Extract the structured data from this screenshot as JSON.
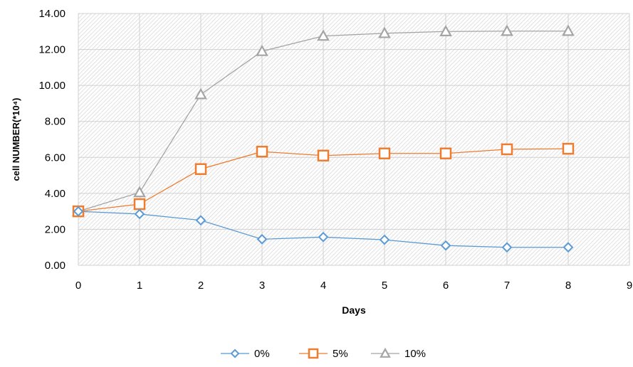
{
  "chart_data": {
    "type": "line",
    "title": "",
    "xlabel": "Days",
    "ylabel": "cell NUMBER(*10⁴)",
    "xlim": [
      0,
      9
    ],
    "ylim": [
      0,
      14
    ],
    "x_ticks": [
      "0",
      "1",
      "2",
      "3",
      "4",
      "5",
      "6",
      "7",
      "8",
      "9"
    ],
    "y_ticks": [
      "0.00",
      "2.00",
      "4.00",
      "6.00",
      "8.00",
      "10.00",
      "12.00",
      "14.00"
    ],
    "grid": true,
    "legend_position": "bottom",
    "x": [
      0,
      1,
      2,
      3,
      4,
      5,
      6,
      7,
      8
    ],
    "series": [
      {
        "name": "0%",
        "marker": "diamond",
        "color": "#5b9bd5",
        "values": [
          3.0,
          2.85,
          2.5,
          1.45,
          1.57,
          1.42,
          1.1,
          1.0,
          1.0
        ]
      },
      {
        "name": "5%",
        "marker": "square",
        "color": "#ed7d31",
        "values": [
          3.0,
          3.4,
          5.35,
          6.32,
          6.1,
          6.22,
          6.22,
          6.45,
          6.48
        ]
      },
      {
        "name": "10%",
        "marker": "triangle",
        "color": "#a5a5a5",
        "values": [
          3.0,
          4.05,
          9.5,
          11.9,
          12.75,
          12.9,
          13.0,
          13.02,
          13.02
        ]
      }
    ]
  }
}
